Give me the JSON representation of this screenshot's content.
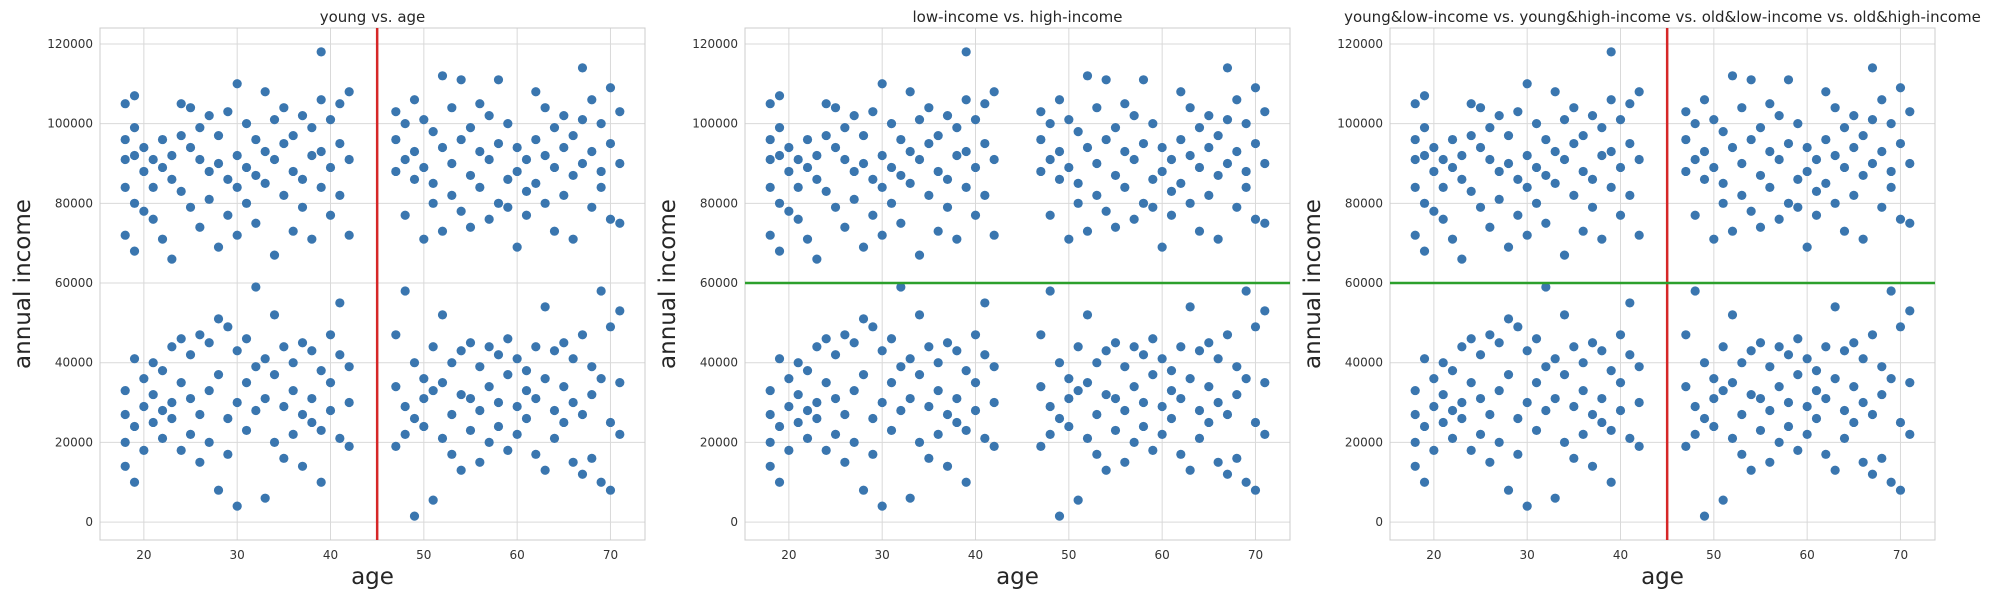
{
  "chart_data": [
    {
      "type": "scatter",
      "title": "young vs. age",
      "xlabel": "age",
      "ylabel": "annual income",
      "xlim": [
        15.3,
        73.7
      ],
      "ylim": [
        -4500,
        124000
      ],
      "xticks": [
        20,
        30,
        40,
        50,
        60,
        70
      ],
      "yticks": [
        0,
        20000,
        40000,
        60000,
        80000,
        100000,
        120000
      ],
      "grid": true,
      "vlines": [
        {
          "x": 45,
          "color": "#d62728"
        }
      ],
      "hlines": [],
      "series": [
        {
          "color": "#3a76af",
          "points_ref": "income_points"
        }
      ]
    },
    {
      "type": "scatter",
      "title": "low-income vs. high-income",
      "xlabel": "age",
      "ylabel": "annual income",
      "xlim": [
        15.3,
        73.7
      ],
      "ylim": [
        -4500,
        124000
      ],
      "xticks": [
        20,
        30,
        40,
        50,
        60,
        70
      ],
      "yticks": [
        0,
        20000,
        40000,
        60000,
        80000,
        100000,
        120000
      ],
      "grid": true,
      "vlines": [],
      "hlines": [
        {
          "y": 60000,
          "color": "#2ca02c"
        }
      ],
      "series": [
        {
          "color": "#3a76af",
          "points_ref": "income_points"
        }
      ]
    },
    {
      "type": "scatter",
      "title": "young&low-income vs. young&high-income vs. old&low-income vs. old&high-income",
      "xlabel": "age",
      "ylabel": "annual income",
      "xlim": [
        15.3,
        73.7
      ],
      "ylim": [
        -4500,
        124000
      ],
      "xticks": [
        20,
        30,
        40,
        50,
        60,
        70
      ],
      "yticks": [
        0,
        20000,
        40000,
        60000,
        80000,
        100000,
        120000
      ],
      "grid": true,
      "vlines": [
        {
          "x": 45,
          "color": "#d62728"
        }
      ],
      "hlines": [
        {
          "y": 60000,
          "color": "#2ca02c"
        }
      ],
      "series": [
        {
          "color": "#3a76af",
          "points_ref": "income_points"
        }
      ]
    }
  ],
  "income_points": [
    [
      18,
      105000
    ],
    [
      18,
      96000
    ],
    [
      18,
      91000
    ],
    [
      18,
      84000
    ],
    [
      18,
      72000
    ],
    [
      19,
      107000
    ],
    [
      19,
      99000
    ],
    [
      19,
      92000
    ],
    [
      19,
      80000
    ],
    [
      19,
      68000
    ],
    [
      20,
      94000
    ],
    [
      20,
      88000
    ],
    [
      20,
      78000
    ],
    [
      21,
      91000
    ],
    [
      21,
      84000
    ],
    [
      21,
      76000
    ],
    [
      22,
      96000
    ],
    [
      22,
      89000
    ],
    [
      22,
      71000
    ],
    [
      23,
      92000
    ],
    [
      23,
      86000
    ],
    [
      23,
      66000
    ],
    [
      24,
      105000
    ],
    [
      24,
      97000
    ],
    [
      24,
      83000
    ],
    [
      25,
      104000
    ],
    [
      25,
      94000
    ],
    [
      25,
      79000
    ],
    [
      26,
      99000
    ],
    [
      26,
      91000
    ],
    [
      26,
      74000
    ],
    [
      27,
      102000
    ],
    [
      27,
      88000
    ],
    [
      27,
      81000
    ],
    [
      28,
      97000
    ],
    [
      28,
      90000
    ],
    [
      28,
      69000
    ],
    [
      29,
      103000
    ],
    [
      29,
      86000
    ],
    [
      29,
      77000
    ],
    [
      30,
      110000
    ],
    [
      30,
      92000
    ],
    [
      30,
      84000
    ],
    [
      30,
      72000
    ],
    [
      31,
      100000
    ],
    [
      31,
      89000
    ],
    [
      31,
      80000
    ],
    [
      32,
      96000
    ],
    [
      32,
      87000
    ],
    [
      32,
      75000
    ],
    [
      33,
      108000
    ],
    [
      33,
      93000
    ],
    [
      33,
      85000
    ],
    [
      34,
      101000
    ],
    [
      34,
      91000
    ],
    [
      34,
      67000
    ],
    [
      35,
      104000
    ],
    [
      35,
      95000
    ],
    [
      35,
      82000
    ],
    [
      36,
      97000
    ],
    [
      36,
      88000
    ],
    [
      36,
      73000
    ],
    [
      37,
      102000
    ],
    [
      37,
      86000
    ],
    [
      37,
      79000
    ],
    [
      38,
      99000
    ],
    [
      38,
      92000
    ],
    [
      38,
      71000
    ],
    [
      39,
      118000
    ],
    [
      39,
      106000
    ],
    [
      39,
      93000
    ],
    [
      39,
      84000
    ],
    [
      40,
      101000
    ],
    [
      40,
      89000
    ],
    [
      40,
      77000
    ],
    [
      41,
      105000
    ],
    [
      41,
      95000
    ],
    [
      41,
      82000
    ],
    [
      42,
      108000
    ],
    [
      42,
      91000
    ],
    [
      42,
      72000
    ],
    [
      18,
      33000
    ],
    [
      18,
      27000
    ],
    [
      18,
      20000
    ],
    [
      18,
      14000
    ],
    [
      19,
      41000
    ],
    [
      19,
      24000
    ],
    [
      19,
      10000
    ],
    [
      20,
      36000
    ],
    [
      20,
      29000
    ],
    [
      20,
      18000
    ],
    [
      21,
      40000
    ],
    [
      21,
      32000
    ],
    [
      21,
      25000
    ],
    [
      22,
      38000
    ],
    [
      22,
      28000
    ],
    [
      22,
      21000
    ],
    [
      23,
      44000
    ],
    [
      23,
      30000
    ],
    [
      23,
      26000
    ],
    [
      24,
      46000
    ],
    [
      24,
      35000
    ],
    [
      24,
      18000
    ],
    [
      25,
      42000
    ],
    [
      25,
      31000
    ],
    [
      25,
      22000
    ],
    [
      26,
      47000
    ],
    [
      26,
      27000
    ],
    [
      26,
      15000
    ],
    [
      27,
      45000
    ],
    [
      27,
      33000
    ],
    [
      27,
      20000
    ],
    [
      28,
      51000
    ],
    [
      28,
      37000
    ],
    [
      28,
      8000
    ],
    [
      29,
      49000
    ],
    [
      29,
      26000
    ],
    [
      29,
      17000
    ],
    [
      30,
      43000
    ],
    [
      30,
      30000
    ],
    [
      30,
      4000
    ],
    [
      31,
      46000
    ],
    [
      31,
      35000
    ],
    [
      31,
      23000
    ],
    [
      32,
      59000
    ],
    [
      32,
      39000
    ],
    [
      32,
      28000
    ],
    [
      33,
      41000
    ],
    [
      33,
      31000
    ],
    [
      33,
      6000
    ],
    [
      34,
      52000
    ],
    [
      34,
      37000
    ],
    [
      34,
      20000
    ],
    [
      35,
      44000
    ],
    [
      35,
      29000
    ],
    [
      35,
      16000
    ],
    [
      36,
      40000
    ],
    [
      36,
      33000
    ],
    [
      36,
      22000
    ],
    [
      37,
      45000
    ],
    [
      37,
      27000
    ],
    [
      37,
      14000
    ],
    [
      38,
      43000
    ],
    [
      38,
      31000
    ],
    [
      38,
      25000
    ],
    [
      39,
      38000
    ],
    [
      39,
      23000
    ],
    [
      39,
      10000
    ],
    [
      40,
      47000
    ],
    [
      40,
      35000
    ],
    [
      40,
      28000
    ],
    [
      41,
      55000
    ],
    [
      41,
      42000
    ],
    [
      41,
      21000
    ],
    [
      42,
      39000
    ],
    [
      42,
      30000
    ],
    [
      42,
      19000
    ],
    [
      47,
      103000
    ],
    [
      47,
      96000
    ],
    [
      47,
      88000
    ],
    [
      48,
      100000
    ],
    [
      48,
      91000
    ],
    [
      48,
      77000
    ],
    [
      49,
      106000
    ],
    [
      49,
      93000
    ],
    [
      49,
      86000
    ],
    [
      50,
      101000
    ],
    [
      50,
      89000
    ],
    [
      50,
      71000
    ],
    [
      51,
      98000
    ],
    [
      51,
      85000
    ],
    [
      51,
      80000
    ],
    [
      52,
      112000
    ],
    [
      52,
      94000
    ],
    [
      52,
      73000
    ],
    [
      53,
      104000
    ],
    [
      53,
      90000
    ],
    [
      53,
      82000
    ],
    [
      54,
      111000
    ],
    [
      54,
      96000
    ],
    [
      54,
      78000
    ],
    [
      55,
      99000
    ],
    [
      55,
      87000
    ],
    [
      55,
      74000
    ],
    [
      56,
      105000
    ],
    [
      56,
      93000
    ],
    [
      56,
      84000
    ],
    [
      57,
      102000
    ],
    [
      57,
      91000
    ],
    [
      57,
      76000
    ],
    [
      58,
      111000
    ],
    [
      58,
      95000
    ],
    [
      58,
      80000
    ],
    [
      59,
      100000
    ],
    [
      59,
      86000
    ],
    [
      59,
      79000
    ],
    [
      60,
      94000
    ],
    [
      60,
      88000
    ],
    [
      60,
      69000
    ],
    [
      61,
      91000
    ],
    [
      61,
      83000
    ],
    [
      61,
      77000
    ],
    [
      62,
      108000
    ],
    [
      62,
      96000
    ],
    [
      62,
      85000
    ],
    [
      63,
      104000
    ],
    [
      63,
      92000
    ],
    [
      63,
      80000
    ],
    [
      64,
      99000
    ],
    [
      64,
      89000
    ],
    [
      64,
      73000
    ],
    [
      65,
      102000
    ],
    [
      65,
      94000
    ],
    [
      65,
      82000
    ],
    [
      66,
      97000
    ],
    [
      66,
      87000
    ],
    [
      66,
      71000
    ],
    [
      67,
      114000
    ],
    [
      67,
      101000
    ],
    [
      67,
      90000
    ],
    [
      68,
      106000
    ],
    [
      68,
      93000
    ],
    [
      68,
      79000
    ],
    [
      69,
      100000
    ],
    [
      69,
      88000
    ],
    [
      69,
      84000
    ],
    [
      70,
      109000
    ],
    [
      70,
      95000
    ],
    [
      70,
      76000
    ],
    [
      71,
      103000
    ],
    [
      71,
      90000
    ],
    [
      71,
      75000
    ],
    [
      47,
      47000
    ],
    [
      47,
      34000
    ],
    [
      47,
      19000
    ],
    [
      48,
      58000
    ],
    [
      48,
      29000
    ],
    [
      48,
      22000
    ],
    [
      49,
      40000
    ],
    [
      49,
      26000
    ],
    [
      49,
      1500
    ],
    [
      50,
      36000
    ],
    [
      50,
      31000
    ],
    [
      50,
      24000
    ],
    [
      51,
      44000
    ],
    [
      51,
      33000
    ],
    [
      51,
      5500
    ],
    [
      52,
      52000
    ],
    [
      52,
      35000
    ],
    [
      52,
      21000
    ],
    [
      53,
      40000
    ],
    [
      53,
      27000
    ],
    [
      53,
      17000
    ],
    [
      54,
      43000
    ],
    [
      54,
      32000
    ],
    [
      54,
      13000
    ],
    [
      55,
      45000
    ],
    [
      55,
      31000
    ],
    [
      55,
      23000
    ],
    [
      56,
      39000
    ],
    [
      56,
      28000
    ],
    [
      56,
      15000
    ],
    [
      57,
      44000
    ],
    [
      57,
      34000
    ],
    [
      57,
      20000
    ],
    [
      58,
      42000
    ],
    [
      58,
      30000
    ],
    [
      58,
      24000
    ],
    [
      59,
      46000
    ],
    [
      59,
      37000
    ],
    [
      59,
      18000
    ],
    [
      60,
      41000
    ],
    [
      60,
      29000
    ],
    [
      60,
      22000
    ],
    [
      61,
      38000
    ],
    [
      61,
      33000
    ],
    [
      61,
      26000
    ],
    [
      62,
      44000
    ],
    [
      62,
      31000
    ],
    [
      62,
      17000
    ],
    [
      63,
      54000
    ],
    [
      63,
      36000
    ],
    [
      63,
      13000
    ],
    [
      64,
      43000
    ],
    [
      64,
      28000
    ],
    [
      64,
      21000
    ],
    [
      65,
      45000
    ],
    [
      65,
      34000
    ],
    [
      65,
      25000
    ],
    [
      66,
      41000
    ],
    [
      66,
      30000
    ],
    [
      66,
      15000
    ],
    [
      67,
      47000
    ],
    [
      67,
      27000
    ],
    [
      67,
      12000
    ],
    [
      68,
      39000
    ],
    [
      68,
      32000
    ],
    [
      68,
      16000
    ],
    [
      69,
      58000
    ],
    [
      69,
      36000
    ],
    [
      69,
      10000
    ],
    [
      70,
      49000
    ],
    [
      70,
      25000
    ],
    [
      70,
      8000
    ],
    [
      71,
      53000
    ],
    [
      71,
      35000
    ],
    [
      71,
      22000
    ]
  ]
}
